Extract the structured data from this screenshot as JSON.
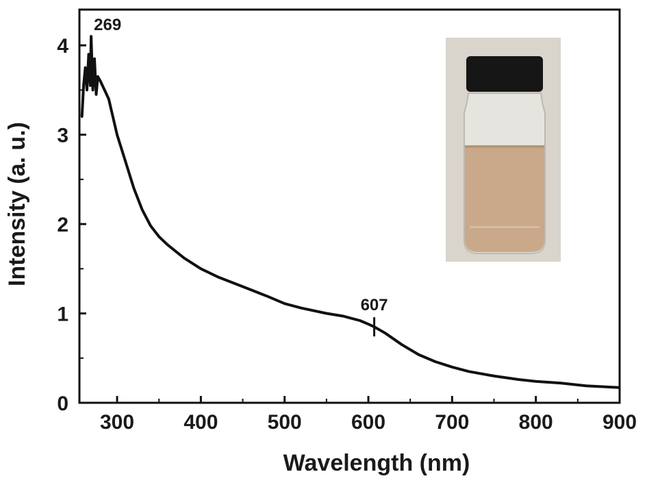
{
  "chart_data": {
    "type": "line",
    "title": "",
    "xlabel": "Wavelength (nm)",
    "ylabel": "Intensity (a. u.)",
    "xlim": [
      255,
      900
    ],
    "ylim": [
      0,
      4.4
    ],
    "x_ticks": [
      300,
      400,
      500,
      600,
      700,
      800,
      900
    ],
    "x_tick_labels": [
      "300",
      "400",
      "500",
      "600",
      "700",
      "800",
      "900"
    ],
    "y_ticks": [
      0,
      1,
      2,
      3,
      4
    ],
    "y_tick_labels": [
      "0",
      "1",
      "2",
      "3",
      "4"
    ],
    "grid": false,
    "legend": "none",
    "series": [
      {
        "color": "#111111",
        "x": [
          258,
          260,
          262,
          264,
          266,
          268,
          269,
          271,
          273,
          275,
          277,
          280,
          285,
          290,
          300,
          310,
          320,
          330,
          340,
          350,
          360,
          380,
          400,
          420,
          450,
          480,
          500,
          520,
          550,
          570,
          590,
          600,
          607,
          620,
          640,
          660,
          680,
          700,
          720,
          750,
          780,
          800,
          830,
          860,
          880,
          900
        ],
        "y": [
          3.2,
          3.55,
          3.75,
          3.5,
          3.9,
          3.55,
          4.1,
          3.5,
          3.85,
          3.45,
          3.65,
          3.6,
          3.5,
          3.4,
          3.0,
          2.7,
          2.4,
          2.16,
          1.98,
          1.86,
          1.77,
          1.62,
          1.5,
          1.41,
          1.3,
          1.19,
          1.11,
          1.06,
          1.0,
          0.97,
          0.92,
          0.88,
          0.85,
          0.78,
          0.65,
          0.54,
          0.46,
          0.4,
          0.35,
          0.3,
          0.26,
          0.24,
          0.22,
          0.19,
          0.18,
          0.17
        ]
      }
    ],
    "annotations": [
      {
        "text": "269",
        "x": 269,
        "y": 4.1
      },
      {
        "text": "607",
        "x": 607,
        "y": 0.85
      }
    ],
    "inset": {
      "description": "photo of vial with light brown solution",
      "cap_color": "#161616",
      "liquid_color": "#c9a98a",
      "background_color": "#d8d2c8"
    }
  }
}
